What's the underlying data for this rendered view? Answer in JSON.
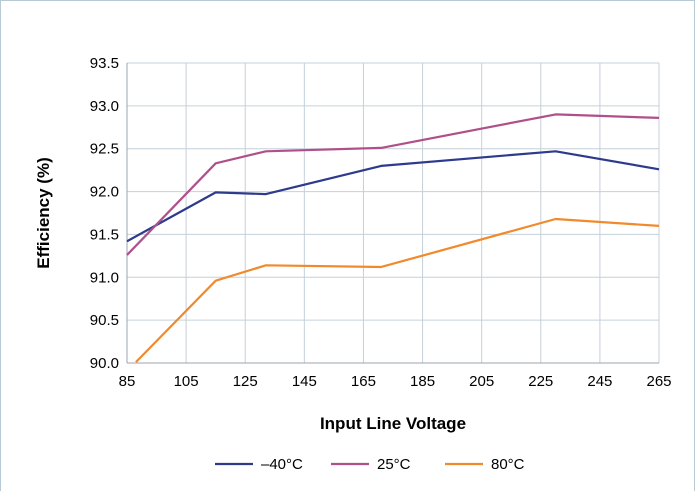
{
  "chart_data": {
    "type": "line",
    "title": "",
    "xlabel": "Input Line Voltage",
    "ylabel": "Efficiency (%)",
    "xlim": [
      85,
      265
    ],
    "ylim": [
      90.0,
      93.5
    ],
    "xticks": [
      "85",
      "105",
      "125",
      "145",
      "165",
      "185",
      "205",
      "225",
      "245",
      "265"
    ],
    "yticks": [
      "90.0",
      "90.5",
      "91.0",
      "91.5",
      "92.0",
      "92.5",
      "93.0",
      "93.5"
    ],
    "grid": true,
    "legend_position": "bottom",
    "series": [
      {
        "name": "–40°C",
        "color": "#2e3a8c",
        "points": [
          [
            85,
            91.42
          ],
          [
            115,
            91.99
          ],
          [
            132,
            91.97
          ],
          [
            171,
            92.3
          ],
          [
            230,
            92.47
          ],
          [
            265,
            92.26
          ]
        ]
      },
      {
        "name": "25°C",
        "color": "#b0508a",
        "points": [
          [
            85,
            91.26
          ],
          [
            115,
            92.33
          ],
          [
            132,
            92.47
          ],
          [
            171,
            92.51
          ],
          [
            230,
            92.9
          ],
          [
            265,
            92.86
          ]
        ]
      },
      {
        "name": "80°C",
        "color": "#f08a2c",
        "points": [
          [
            88,
            90.01
          ],
          [
            115,
            90.96
          ],
          [
            132,
            91.14
          ],
          [
            171,
            91.12
          ],
          [
            230,
            91.68
          ],
          [
            265,
            91.6
          ]
        ]
      }
    ]
  }
}
